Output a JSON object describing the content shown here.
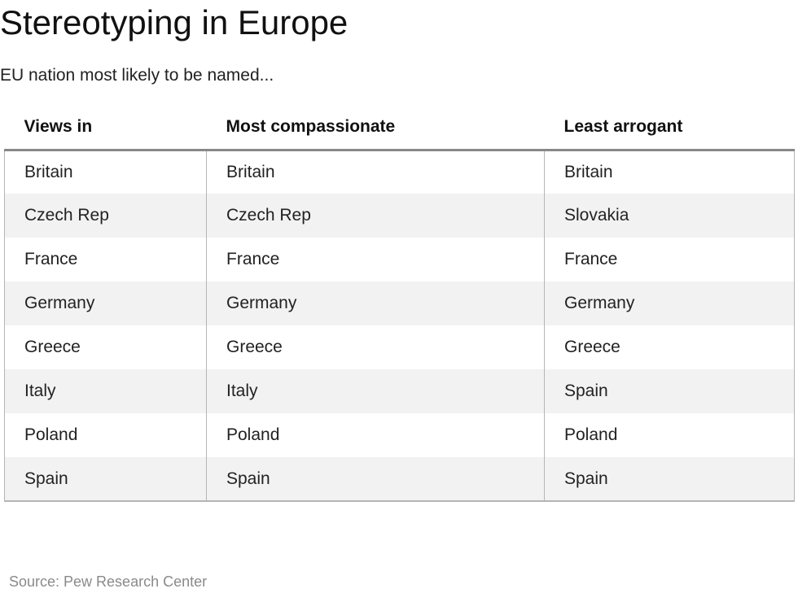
{
  "title": "Stereotyping in Europe",
  "subtitle": "EU nation most likely to be named...",
  "source": "Source: Pew Research Center",
  "colors": {
    "header_rule": "#888888",
    "stripe": "#f2f2f2",
    "border": "#b5b5b5",
    "source_text": "#8a8a8a"
  },
  "chart_data": {
    "type": "table",
    "columns": [
      "Views in",
      "Most compassionate",
      "Least arrogant"
    ],
    "rows": [
      [
        "Britain",
        "Britain",
        "Britain"
      ],
      [
        "Czech Rep",
        "Czech Rep",
        "Slovakia"
      ],
      [
        "France",
        "France",
        "France"
      ],
      [
        "Germany",
        "Germany",
        "Germany"
      ],
      [
        "Greece",
        "Greece",
        "Greece"
      ],
      [
        "Italy",
        "Italy",
        "Spain"
      ],
      [
        "Poland",
        "Poland",
        "Poland"
      ],
      [
        "Spain",
        "Spain",
        "Spain"
      ]
    ]
  }
}
